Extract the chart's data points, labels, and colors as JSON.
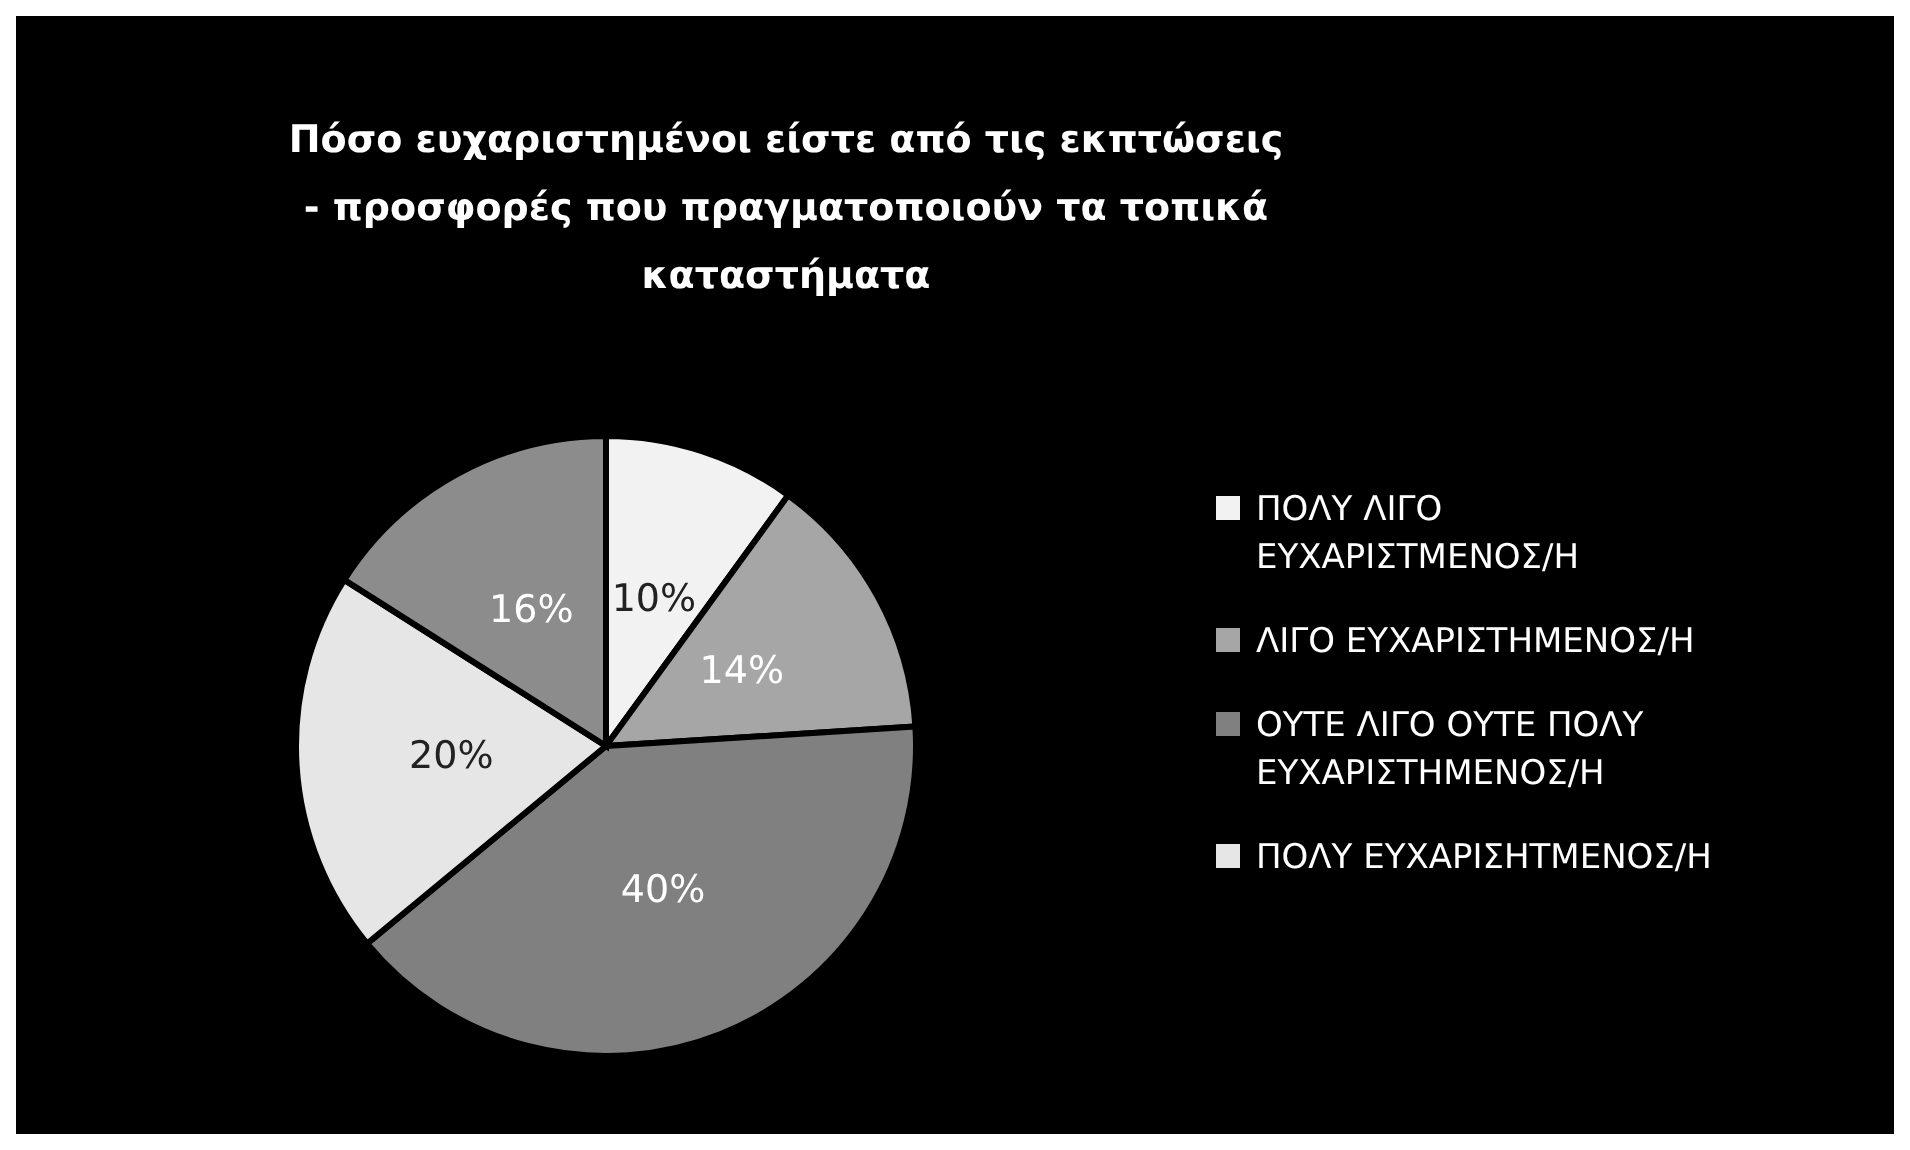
{
  "chart_data": {
    "type": "pie",
    "title": "Πόσο ευχαριστημένοι είστε από τις εκπτώσεις - προσφορές που πραγματοποιούν τα τοπικά καταστήματα",
    "categories": [
      "ΠΟΛΥ ΛΙΓΟ ΕΥΧΑΡΙΣΤΜΕΝΟΣ/Η",
      "ΛΙΓΟ ΕΥΧΑΡΙΣΤΗΜΕΝΟΣ/Η",
      "ΟΥΤΕ ΛΙΓΟ ΟΥΤΕ ΠΟΛΥ ΕΥΧΑΡΙΣΤΗΜΕΝΟΣ/Η",
      "ΠΟΛΥ ΕΥΧΑΡΙΣΗΤΜΕΝΟΣ/Η",
      null
    ],
    "values": [
      10,
      14,
      40,
      20,
      16
    ],
    "colors": [
      "#f2f2f2",
      "#a6a6a6",
      "#808080",
      "#e6e6e6",
      "#8c8c8c"
    ],
    "value_labels": [
      "10%",
      "14%",
      "40%",
      "20%",
      "16%"
    ],
    "legend": "right"
  }
}
